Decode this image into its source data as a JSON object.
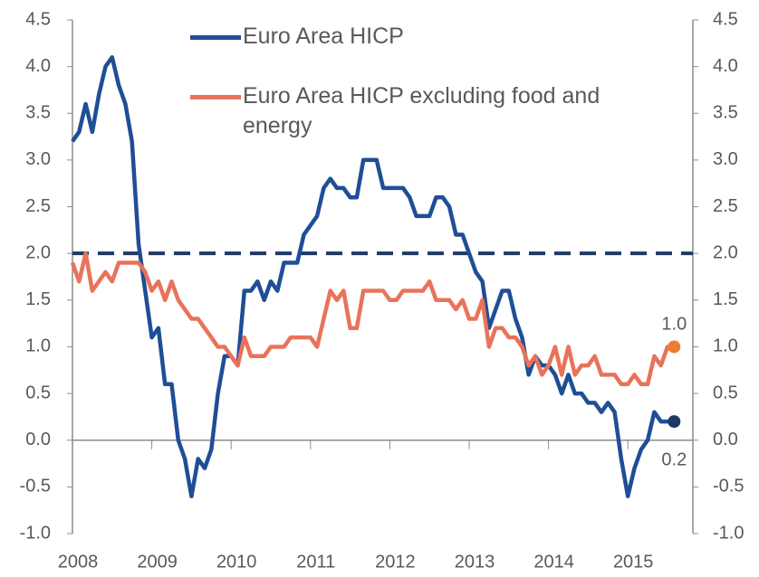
{
  "chart_data": {
    "type": "line",
    "categories": [
      "2008",
      null,
      null,
      null,
      null,
      null,
      null,
      null,
      null,
      null,
      null,
      null,
      "2009",
      null,
      null,
      null,
      null,
      null,
      null,
      null,
      null,
      null,
      null,
      null,
      "2010",
      null,
      null,
      null,
      null,
      null,
      null,
      null,
      null,
      null,
      null,
      null,
      "2011",
      null,
      null,
      null,
      null,
      null,
      null,
      null,
      null,
      null,
      null,
      null,
      "2012",
      null,
      null,
      null,
      null,
      null,
      null,
      null,
      null,
      null,
      null,
      null,
      "2013",
      null,
      null,
      null,
      null,
      null,
      null,
      null,
      null,
      null,
      null,
      null,
      "2014",
      null,
      null,
      null,
      null,
      null,
      null,
      null,
      null,
      null,
      null,
      null,
      "2015",
      null,
      null,
      null,
      null,
      null,
      null,
      null
    ],
    "series": [
      {
        "name": "Euro Area HICP",
        "color": "#1f4e96",
        "marker_color": "#1f3864",
        "end_label": "0.2",
        "end_label_side": "below",
        "values": [
          3.2,
          3.3,
          3.6,
          3.3,
          3.7,
          4.0,
          4.1,
          3.8,
          3.6,
          3.2,
          2.1,
          1.6,
          1.1,
          1.2,
          0.6,
          0.6,
          0.0,
          -0.2,
          -0.6,
          -0.2,
          -0.3,
          -0.1,
          0.5,
          0.9,
          0.9,
          0.8,
          1.6,
          1.6,
          1.7,
          1.5,
          1.7,
          1.6,
          1.9,
          1.9,
          1.9,
          2.2,
          2.3,
          2.4,
          2.7,
          2.8,
          2.7,
          2.7,
          2.6,
          2.6,
          3.0,
          3.0,
          3.0,
          2.7,
          2.7,
          2.7,
          2.7,
          2.6,
          2.4,
          2.4,
          2.4,
          2.6,
          2.6,
          2.5,
          2.2,
          2.2,
          2.0,
          1.8,
          1.7,
          1.2,
          1.4,
          1.6,
          1.6,
          1.3,
          1.1,
          0.7,
          0.9,
          0.8,
          0.8,
          0.7,
          0.5,
          0.7,
          0.5,
          0.5,
          0.4,
          0.4,
          0.3,
          0.4,
          0.3,
          -0.2,
          -0.6,
          -0.3,
          -0.1,
          0.0,
          0.3,
          0.2,
          0.2,
          0.2
        ]
      },
      {
        "name": "Euro Area HICP excluding food and energy",
        "color": "#e8735a",
        "marker_color": "#ed7d31",
        "end_label": "1.0",
        "end_label_side": "above",
        "values": [
          1.9,
          1.7,
          2.0,
          1.6,
          1.7,
          1.8,
          1.7,
          1.9,
          1.9,
          1.9,
          1.9,
          1.8,
          1.6,
          1.7,
          1.5,
          1.7,
          1.5,
          1.4,
          1.3,
          1.3,
          1.2,
          1.1,
          1.0,
          1.0,
          0.9,
          0.8,
          1.1,
          0.9,
          0.9,
          0.9,
          1.0,
          1.0,
          1.0,
          1.1,
          1.1,
          1.1,
          1.1,
          1.0,
          1.3,
          1.6,
          1.5,
          1.6,
          1.2,
          1.2,
          1.6,
          1.6,
          1.6,
          1.6,
          1.5,
          1.5,
          1.6,
          1.6,
          1.6,
          1.6,
          1.7,
          1.5,
          1.5,
          1.5,
          1.4,
          1.5,
          1.3,
          1.3,
          1.5,
          1.0,
          1.2,
          1.2,
          1.1,
          1.1,
          1.0,
          0.8,
          0.9,
          0.7,
          0.8,
          1.0,
          0.7,
          1.0,
          0.7,
          0.8,
          0.8,
          0.9,
          0.7,
          0.7,
          0.7,
          0.6,
          0.6,
          0.7,
          0.6,
          0.6,
          0.9,
          0.8,
          1.0,
          1.0
        ]
      }
    ],
    "reference_line": {
      "value": 2.0,
      "color": "#1f3864"
    },
    "ylim": [
      -1.0,
      4.5
    ],
    "y2lim": [
      -1.0,
      4.5
    ],
    "yticks": [
      {
        "value": -1.0,
        "label": "-1.0"
      },
      -0.5,
      {
        "value": 0.0,
        "label": "0.0"
      },
      0.5,
      {
        "value": 1.0,
        "label": "1.0"
      },
      1.5,
      {
        "value": 2.0,
        "label": "2.0"
      },
      2.5,
      {
        "value": 3.0,
        "label": "3.0"
      },
      3.5,
      {
        "value": 4.0,
        "label": "4.0"
      },
      4.5
    ],
    "y2ticks": [
      {
        "value": -1.0,
        "label": "-1.0"
      },
      -0.5,
      {
        "value": 0.0,
        "label": "0.0"
      },
      0.5,
      {
        "value": 1.0,
        "label": "1.0"
      },
      1.5,
      {
        "value": 2.0,
        "label": "2.0"
      },
      2.5,
      {
        "value": 3.0,
        "label": "3.0"
      },
      3.5,
      {
        "value": 4.0,
        "label": "4.0"
      },
      4.5
    ],
    "grid": false
  }
}
